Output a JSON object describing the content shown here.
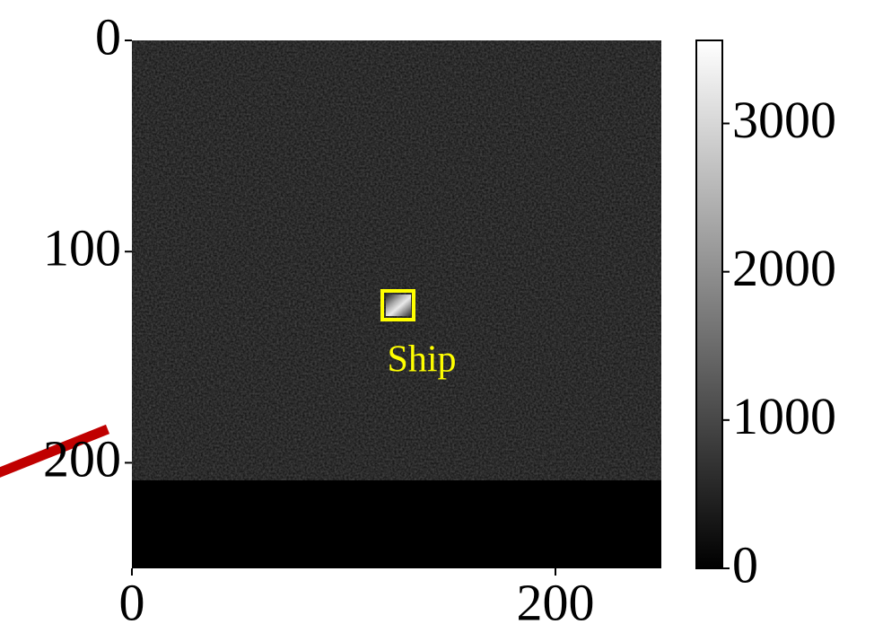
{
  "chart_data": {
    "type": "image",
    "colormap": "gray",
    "xlim": [
      0,
      250
    ],
    "xticks": [
      0,
      200
    ],
    "ylim": [
      250,
      0
    ],
    "yticks": [
      0,
      100,
      200
    ],
    "colorbar": {
      "lim": [
        0,
        3560
      ],
      "ticks": [
        0,
        1000,
        2000,
        3000
      ]
    },
    "annotations": [
      "Ship"
    ],
    "annotation_color": "#ffff00"
  }
}
